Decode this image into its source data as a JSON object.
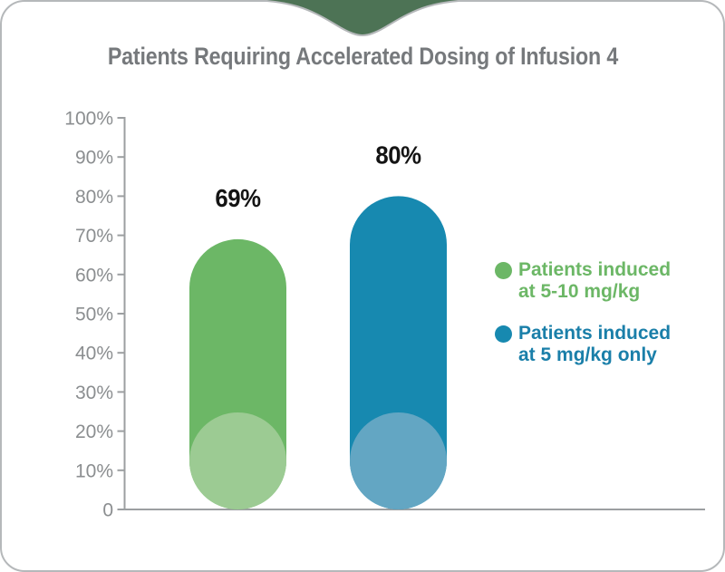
{
  "card": {
    "type": "rounded-white-card-with-top-notch"
  },
  "colors": {
    "card_border": "#b5b8ba",
    "notch_green": "#4d7355",
    "title_gray": "#76797c",
    "axis_gray": "#9c9fa1",
    "tick_label_gray": "#8b8e90",
    "value_label_black": "#141414",
    "bar_green": "#6cb766",
    "bar_green_light": "#9ccb93",
    "bar_blue": "#1789b0",
    "bar_blue_light": "#63a6c3",
    "legend_green_text": "#6cb766",
    "legend_blue_text": "#1a7fa9"
  },
  "chart_data": {
    "type": "bar",
    "title": "Patients Requiring Accelerated Dosing of Infusion 4",
    "xlabel": "",
    "ylabel": "",
    "ylim": [
      0,
      100
    ],
    "ytick_interval": 10,
    "grid": false,
    "legend_position": "right",
    "yticks": [
      {
        "value": 100,
        "label": "100%"
      },
      {
        "value": 90,
        "label": "90%"
      },
      {
        "value": 80,
        "label": "80%"
      },
      {
        "value": 70,
        "label": "70%"
      },
      {
        "value": 60,
        "label": "60%"
      },
      {
        "value": 50,
        "label": "50%"
      },
      {
        "value": 40,
        "label": "40%"
      },
      {
        "value": 30,
        "label": "30%"
      },
      {
        "value": 20,
        "label": "20%"
      },
      {
        "value": 10,
        "label": "10%"
      },
      {
        "value": 0,
        "label": "0"
      }
    ],
    "series": [
      {
        "name": "Patients induced at 5-10 mg/kg",
        "value": 69,
        "label": "69%",
        "color": "#6cb766",
        "light_color": "#9ccb93",
        "text_color": "#6cb766",
        "legend_lines": [
          "Patients induced",
          "at 5-10 mg/kg"
        ]
      },
      {
        "name": "Patients induced at 5 mg/kg only",
        "value": 80,
        "label": "80%",
        "color": "#1789b0",
        "light_color": "#63a6c3",
        "text_color": "#1a7fa9",
        "legend_lines": [
          "Patients induced",
          "at 5 mg/kg only"
        ]
      }
    ]
  }
}
